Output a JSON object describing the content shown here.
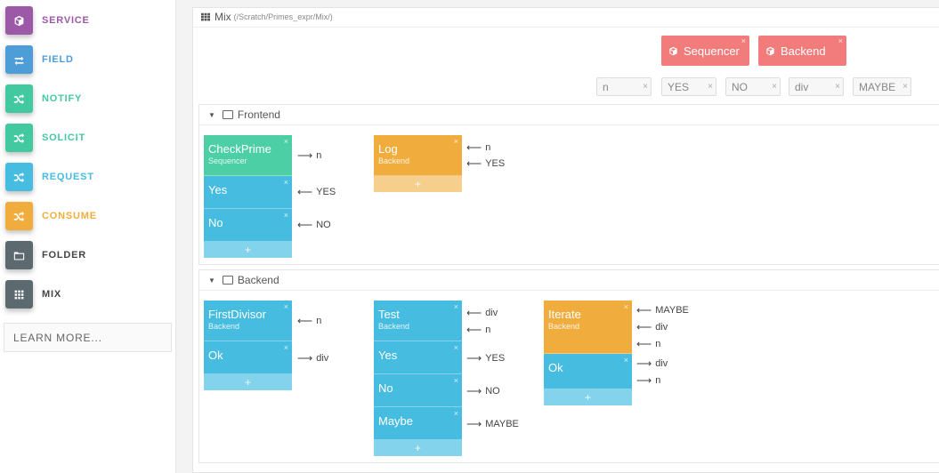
{
  "sidebar": {
    "items": [
      {
        "label": "SERVICE",
        "color": "#9b59a8",
        "icon": "cube-icon"
      },
      {
        "label": "FIELD",
        "color": "#4d9ed8",
        "icon": "swap-arrows-icon"
      },
      {
        "label": "NOTIFY",
        "color": "#43c9a0",
        "icon": "shuffle-icon"
      },
      {
        "label": "SOLICIT",
        "color": "#43c9a0",
        "icon": "shuffle-icon"
      },
      {
        "label": "REQUEST",
        "color": "#45bce0",
        "icon": "shuffle-icon"
      },
      {
        "label": "CONSUME",
        "color": "#f0ad3e",
        "icon": "shuffle-icon"
      },
      {
        "label": "FOLDER",
        "color": "#5c6a70",
        "icon": "folder-icon"
      },
      {
        "label": "MIX",
        "color": "#5c6a70",
        "icon": "grid-icon"
      }
    ],
    "learn_more": "LEARN MORE..."
  },
  "mix": {
    "title": "Mix",
    "path": "(/Scratch/Primes_expr/Mix/)"
  },
  "services": [
    "Sequencer",
    "Backend"
  ],
  "fields": [
    "n",
    "YES",
    "NO",
    "div",
    "MAYBE"
  ],
  "frontend": {
    "title": "Frontend",
    "checkprime": {
      "name": "CheckPrime",
      "sub": "Sequencer",
      "rows": [
        "Yes",
        "No"
      ],
      "conns": [
        "n",
        "YES",
        "NO"
      ]
    },
    "log": {
      "name": "Log",
      "sub": "Backend",
      "conns": [
        "n",
        "YES"
      ]
    }
  },
  "backend": {
    "title": "Backend",
    "firstdivisor": {
      "name": "FirstDivisor",
      "sub": "Backend",
      "rows": [
        "Ok"
      ],
      "conns": [
        "n",
        "div"
      ]
    },
    "test": {
      "name": "Test",
      "sub": "Backend",
      "rows": [
        "Yes",
        "No",
        "Maybe"
      ],
      "conns": [
        "div",
        "n",
        "YES",
        "NO",
        "MAYBE"
      ]
    },
    "iterate": {
      "name": "Iterate",
      "sub": "Backend",
      "rows": [
        "Ok"
      ],
      "conns": [
        "MAYBE",
        "div",
        "n",
        "div",
        "n"
      ]
    }
  },
  "ui": {
    "plus": "+",
    "close": "×"
  }
}
